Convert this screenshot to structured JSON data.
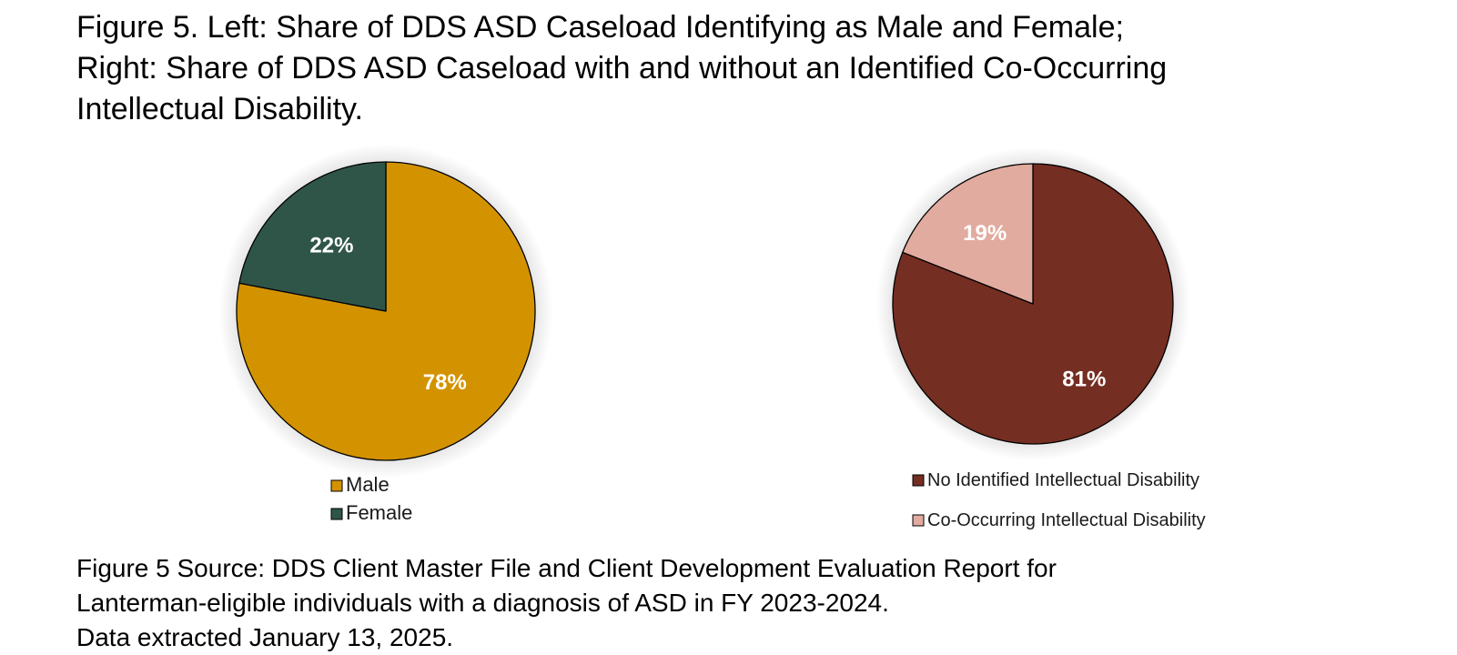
{
  "title": {
    "line1": "Figure 5. Left: Share of DDS ASD Caseload Identifying as Male and Female;",
    "line2": "Right: Share of DDS ASD Caseload with and without an Identified Co-Occurring",
    "line3": "Intellectual Disability."
  },
  "chart_data": [
    {
      "type": "pie",
      "title": "Share of DDS ASD Caseload Identifying as Male and Female",
      "categories": [
        "Male",
        "Female"
      ],
      "values": [
        78,
        22
      ],
      "labels": [
        "78%",
        "22%"
      ],
      "colors": [
        "#D39300",
        "#2F5549"
      ],
      "legend": "bottom"
    },
    {
      "type": "pie",
      "title": "Share of DDS ASD Caseload with and without an Identified Co-Occurring Intellectual Disability",
      "categories": [
        "No Identified Intellectual Disability",
        "Co-Occurring Intellectual Disability"
      ],
      "values": [
        81,
        19
      ],
      "labels": [
        "81%",
        "19%"
      ],
      "colors": [
        "#752E22",
        "#E2ABA0"
      ],
      "legend": "bottom"
    }
  ],
  "source": {
    "line1": "Figure 5 Source: DDS Client Master File and Client Development Evaluation Report for",
    "line2": "Lanterman-eligible individuals with a diagnosis of ASD in FY 2023-2024.",
    "line3": "Data extracted January 13, 2025."
  }
}
